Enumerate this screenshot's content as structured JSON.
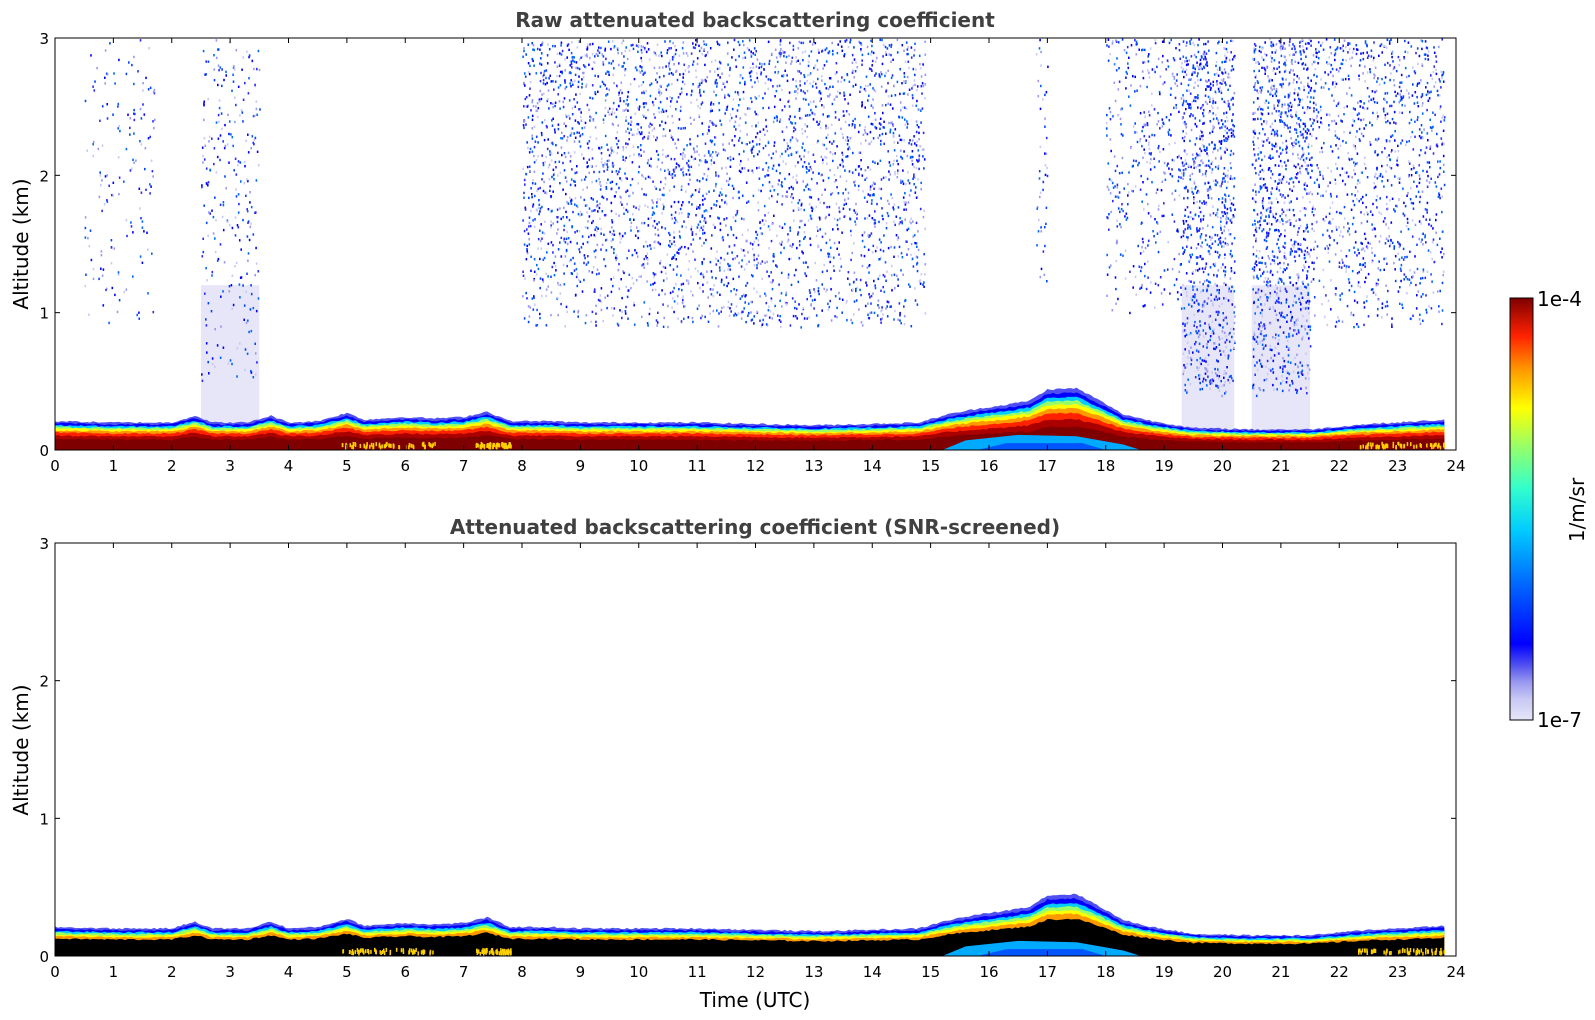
{
  "chart_data": [
    {
      "type": "heatmap",
      "title": "Raw attenuated backscattering coefficient",
      "xlabel": "",
      "ylabel": "Altitude (km)",
      "xlim": [
        0,
        24
      ],
      "ylim": [
        0,
        3
      ],
      "xticks": [
        "0",
        "1",
        "2",
        "3",
        "4",
        "5",
        "6",
        "7",
        "8",
        "9",
        "10",
        "11",
        "12",
        "13",
        "14",
        "15",
        "16",
        "17",
        "18",
        "19",
        "20",
        "21",
        "22",
        "23",
        "24"
      ],
      "yticks": [
        "0",
        "1",
        "2",
        "3"
      ],
      "data_end_time": 23.8,
      "boundary_layer_top_km": [
        [
          0,
          0.21
        ],
        [
          1,
          0.2
        ],
        [
          2,
          0.2
        ],
        [
          2.4,
          0.25
        ],
        [
          2.7,
          0.2
        ],
        [
          3.3,
          0.2
        ],
        [
          3.7,
          0.25
        ],
        [
          4,
          0.2
        ],
        [
          4.5,
          0.21
        ],
        [
          5,
          0.27
        ],
        [
          5.3,
          0.22
        ],
        [
          6,
          0.24
        ],
        [
          6.5,
          0.23
        ],
        [
          7,
          0.24
        ],
        [
          7.4,
          0.28
        ],
        [
          7.8,
          0.21
        ],
        [
          8.5,
          0.21
        ],
        [
          9,
          0.2
        ],
        [
          10,
          0.2
        ],
        [
          11,
          0.2
        ],
        [
          12,
          0.19
        ],
        [
          13,
          0.18
        ],
        [
          14,
          0.19
        ],
        [
          14.8,
          0.2
        ],
        [
          15.3,
          0.26
        ],
        [
          15.8,
          0.3
        ],
        [
          16.3,
          0.33
        ],
        [
          16.7,
          0.36
        ],
        [
          17,
          0.44
        ],
        [
          17.5,
          0.45
        ],
        [
          17.9,
          0.36
        ],
        [
          18.3,
          0.26
        ],
        [
          18.8,
          0.21
        ],
        [
          19.5,
          0.16
        ],
        [
          20.5,
          0.15
        ],
        [
          21.5,
          0.15
        ],
        [
          22,
          0.17
        ],
        [
          22.5,
          0.19
        ],
        [
          23,
          0.2
        ],
        [
          23.8,
          0.22
        ]
      ],
      "aerosol_layer_columns": [
        {
          "start": 0.5,
          "end": 1.7,
          "top_km": 3.0,
          "bottom_km": 0.9,
          "density": 0.15
        },
        {
          "start": 2.5,
          "end": 3.5,
          "top_km": 3.0,
          "bottom_km": 0.5,
          "density": 0.25
        },
        {
          "start": 8.0,
          "end": 14.9,
          "top_km": 3.0,
          "bottom_km": 0.9,
          "density": 0.55
        },
        {
          "start": 16.8,
          "end": 17.0,
          "top_km": 3.0,
          "bottom_km": 1.2,
          "density": 0.3
        },
        {
          "start": 18.0,
          "end": 19.3,
          "top_km": 3.0,
          "bottom_km": 1.0,
          "density": 0.35
        },
        {
          "start": 19.3,
          "end": 20.2,
          "top_km": 3.0,
          "bottom_km": 0.4,
          "density": 0.95
        },
        {
          "start": 20.5,
          "end": 21.5,
          "top_km": 3.0,
          "bottom_km": 0.4,
          "density": 0.95
        },
        {
          "start": 21.5,
          "end": 23.8,
          "top_km": 3.0,
          "bottom_km": 0.9,
          "density": 0.5
        }
      ]
    },
    {
      "type": "heatmap",
      "title": "Attenuated backscattering coefficient (SNR-screened)",
      "xlabel": "Time (UTC)",
      "ylabel": "Altitude (km)",
      "xlim": [
        0,
        24
      ],
      "ylim": [
        0,
        3
      ],
      "xticks": [
        "0",
        "1",
        "2",
        "3",
        "4",
        "5",
        "6",
        "7",
        "8",
        "9",
        "10",
        "11",
        "12",
        "13",
        "14",
        "15",
        "16",
        "17",
        "18",
        "19",
        "20",
        "21",
        "22",
        "23",
        "24"
      ],
      "yticks": [
        "0",
        "1",
        "2",
        "3"
      ],
      "data_end_time": 23.8,
      "screened_core_color": "#000000"
    }
  ],
  "colorbar": {
    "label": "1/m/sr",
    "max_label": "1e-4",
    "min_label": "1e-7",
    "range": [
      1e-07,
      0.0001
    ],
    "colors": [
      "#e6e6f8",
      "#c8c8f4",
      "#9898f0",
      "#5050f0",
      "#0000ff",
      "#0066ff",
      "#00ccff",
      "#33ffcc",
      "#99ff66",
      "#ffff00",
      "#ff9900",
      "#ff2200",
      "#aa0000",
      "#7f0000"
    ]
  }
}
